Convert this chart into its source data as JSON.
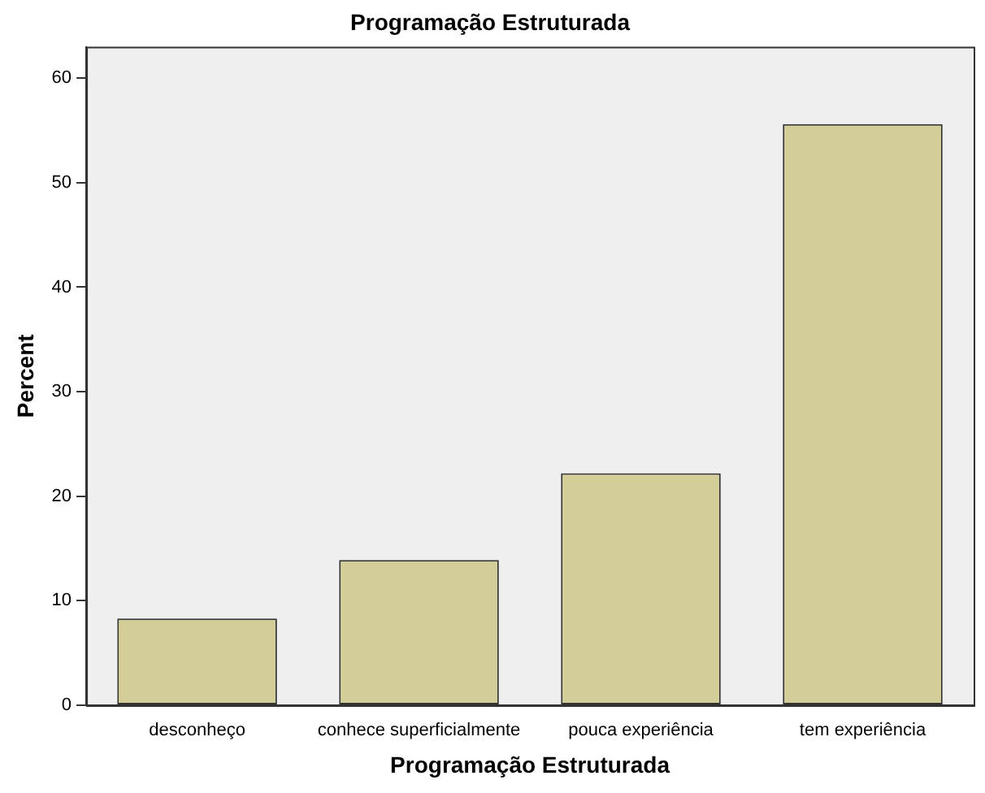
{
  "chart_data": {
    "type": "bar",
    "title": "Programação Estruturada",
    "xlabel": "Programação Estruturada",
    "ylabel": "Percent",
    "categories": [
      "desconheço",
      "conhece superficialmente",
      "pouca experiência",
      "tem experiência"
    ],
    "values": [
      8.3,
      13.9,
      22.2,
      55.6
    ],
    "color": "#d3ce97",
    "ylim": [
      0,
      63
    ],
    "yticks": [
      0,
      10,
      20,
      30,
      40,
      50,
      60
    ],
    "grid": false,
    "legend": false
  }
}
